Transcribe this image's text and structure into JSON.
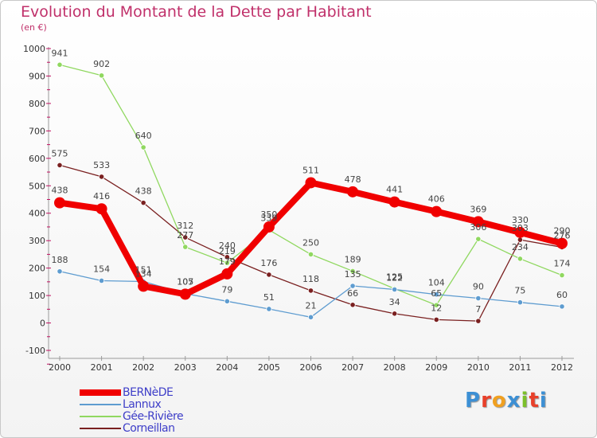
{
  "header": {
    "title": "Evolution du Montant de la Dette par Habitant",
    "subtitle": "(en €)"
  },
  "logo": {
    "text": "Proxiti",
    "colors": [
      "#3c8fd4",
      "#e8402a",
      "#f0a020",
      "#3c8fd4",
      "#7cc02a",
      "#e8402a",
      "#3c8fd4"
    ]
  },
  "chart_data": {
    "type": "line",
    "title": "Evolution du Montant de la Dette par Habitant",
    "subtitle": "(en €)",
    "x": [
      "2000",
      "2001",
      "2002",
      "2003",
      "2004",
      "2005",
      "2006",
      "2007",
      "2008",
      "2009",
      "2010",
      "2011",
      "2012"
    ],
    "ylim": [
      -100,
      1000
    ],
    "yticks": [
      "-100",
      "0",
      "100",
      "200",
      "300",
      "400",
      "500",
      "600",
      "700",
      "800",
      "900",
      "1000"
    ],
    "grid": false,
    "legend_position": "bottom-left",
    "series": [
      {
        "name": "BERNèDE",
        "color": "#f00000",
        "values": [
          438,
          416,
          134,
          105,
          179,
          350,
          511,
          478,
          441,
          406,
          369,
          330,
          290
        ],
        "labels": [
          "438",
          "416",
          "134",
          "105",
          "179",
          "350",
          "511",
          "478",
          "441",
          "406",
          "369",
          "330",
          "290"
        ]
      },
      {
        "name": "Lannux",
        "color": "#5e9cd0",
        "values": [
          188,
          154,
          151,
          107,
          79,
          51,
          21,
          135,
          122,
          104,
          90,
          75,
          60
        ],
        "labels": [
          "188",
          "154",
          "151",
          "107",
          "79",
          "51",
          "21",
          "135",
          "122",
          "104",
          "90",
          "75",
          "60"
        ]
      },
      {
        "name": "Gée-Rivière",
        "color": "#90d860",
        "values": [
          941,
          902,
          640,
          277,
          219,
          339,
          250,
          189,
          125,
          65,
          306,
          234,
          174
        ],
        "labels": [
          "941",
          "902",
          "640",
          "277",
          "219",
          "339",
          "250",
          "189",
          "125",
          "65",
          "306",
          "234",
          "174"
        ]
      },
      {
        "name": "Corneillan",
        "color": "#7a2020",
        "values": [
          575,
          533,
          438,
          312,
          240,
          176,
          118,
          66,
          34,
          12,
          7,
          303,
          276
        ],
        "labels": [
          "575",
          "533",
          "438",
          "312",
          "240",
          "176",
          "118",
          "66",
          "34",
          "12",
          "7",
          "303",
          "276"
        ]
      }
    ]
  }
}
